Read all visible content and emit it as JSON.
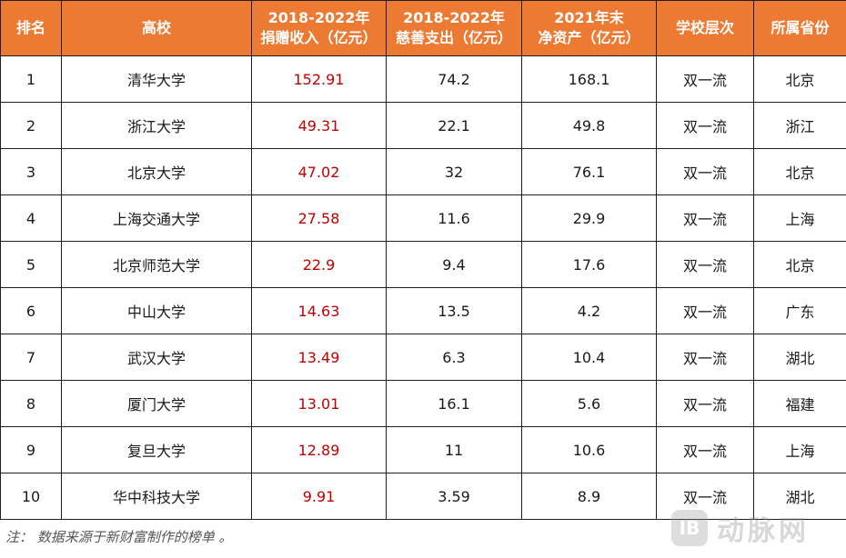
{
  "table": {
    "headers": [
      {
        "line1": "排名",
        "line2": ""
      },
      {
        "line1": "高校",
        "line2": ""
      },
      {
        "line1": "2018-2022年",
        "line2": "捐赠收入（亿元）"
      },
      {
        "line1": "2018-2022年",
        "line2": "慈善支出（亿元）"
      },
      {
        "line1": "2021年末",
        "line2": "净资产（亿元）"
      },
      {
        "line1": "学校层次",
        "line2": ""
      },
      {
        "line1": "所属省份",
        "line2": ""
      }
    ],
    "rows": [
      {
        "rank": "1",
        "school": "清华大学",
        "donation": "152.91",
        "spending": "74.2",
        "assets": "168.1",
        "level": "双一流",
        "province": "北京"
      },
      {
        "rank": "2",
        "school": "浙江大学",
        "donation": "49.31",
        "spending": "22.1",
        "assets": "49.8",
        "level": "双一流",
        "province": "浙江"
      },
      {
        "rank": "3",
        "school": "北京大学",
        "donation": "47.02",
        "spending": "32",
        "assets": "76.1",
        "level": "双一流",
        "province": "北京"
      },
      {
        "rank": "4",
        "school": "上海交通大学",
        "donation": "27.58",
        "spending": "11.6",
        "assets": "29.9",
        "level": "双一流",
        "province": "上海"
      },
      {
        "rank": "5",
        "school": "北京师范大学",
        "donation": "22.9",
        "spending": "9.4",
        "assets": "17.6",
        "level": "双一流",
        "province": "北京"
      },
      {
        "rank": "6",
        "school": "中山大学",
        "donation": "14.63",
        "spending": "13.5",
        "assets": "4.2",
        "level": "双一流",
        "province": "广东"
      },
      {
        "rank": "7",
        "school": "武汉大学",
        "donation": "13.49",
        "spending": "6.3",
        "assets": "10.4",
        "level": "双一流",
        "province": "湖北"
      },
      {
        "rank": "8",
        "school": "厦门大学",
        "donation": "13.01",
        "spending": "16.1",
        "assets": "5.6",
        "level": "双一流",
        "province": "福建"
      },
      {
        "rank": "9",
        "school": "复旦大学",
        "donation": "12.89",
        "spending": "11",
        "assets": "10.6",
        "level": "双一流",
        "province": "上海"
      },
      {
        "rank": "10",
        "school": "华中科技大学",
        "donation": "9.91",
        "spending": "3.59",
        "assets": "8.9",
        "level": "双一流",
        "province": "湖北"
      }
    ]
  },
  "footer": {
    "note": "注： 数据来源于新财富制作的榜单 。"
  },
  "watermark": {
    "logo": "IB",
    "text": "动脉网"
  },
  "colors": {
    "header_bg": "#ec7a32",
    "header_text": "#ffffff",
    "donation_text": "#c00000",
    "border": "#1f1f1f"
  }
}
